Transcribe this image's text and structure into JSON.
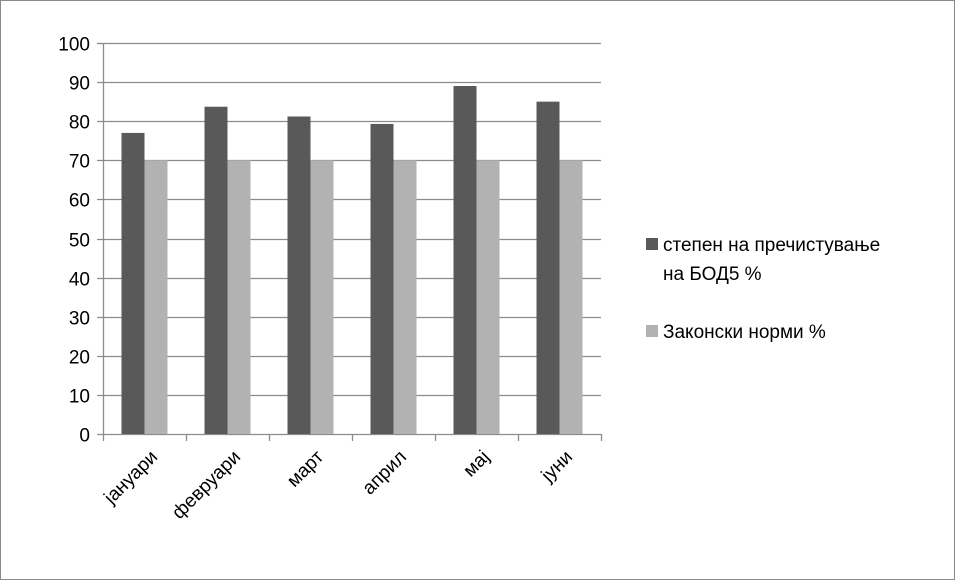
{
  "chart_data": {
    "type": "bar",
    "categories": [
      "јануари",
      "февруари",
      "март",
      "април",
      "мај",
      "јуни"
    ],
    "series": [
      {
        "name_lines": [
          "степен на пречистување",
          "на БОД5 %"
        ],
        "values": [
          77,
          83.7,
          81.2,
          79.3,
          89,
          85
        ],
        "color": "#595959"
      },
      {
        "name_lines": [
          "Законски норми %"
        ],
        "values": [
          70,
          70,
          70,
          70,
          70,
          70
        ],
        "color": "#b2b2b2"
      }
    ],
    "ylim": [
      0,
      100
    ],
    "yticks": [
      0,
      10,
      20,
      30,
      40,
      50,
      60,
      70,
      80,
      90,
      100
    ],
    "grid": true,
    "legend_position": "right",
    "title": "",
    "xlabel": "",
    "ylabel": ""
  }
}
